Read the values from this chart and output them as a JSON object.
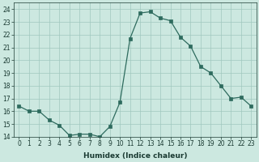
{
  "x": [
    0,
    1,
    2,
    3,
    4,
    5,
    6,
    7,
    8,
    9,
    10,
    11,
    12,
    13,
    14,
    15,
    16,
    17,
    18,
    19,
    20,
    21,
    22,
    23
  ],
  "y": [
    16.4,
    16.0,
    16.0,
    15.3,
    14.9,
    14.1,
    14.2,
    14.2,
    14.0,
    14.8,
    16.7,
    21.7,
    23.7,
    23.8,
    23.3,
    23.1,
    21.8,
    21.1,
    19.5,
    19.0,
    18.0,
    17.0,
    17.1,
    16.4
  ],
  "xlabel": "Humidex (Indice chaleur)",
  "xlim": [
    -0.5,
    23.5
  ],
  "ylim": [
    14,
    24.5
  ],
  "yticks": [
    14,
    15,
    16,
    17,
    18,
    19,
    20,
    21,
    22,
    23,
    24
  ],
  "xticks": [
    0,
    1,
    2,
    3,
    4,
    5,
    6,
    7,
    8,
    9,
    10,
    11,
    12,
    13,
    14,
    15,
    16,
    17,
    18,
    19,
    20,
    21,
    22,
    23
  ],
  "line_color": "#2e6b5e",
  "marker_color": "#2e6b5e",
  "bg_color": "#cce8e0",
  "grid_color": "#a0c8be",
  "fig_bg": "#cce8e0",
  "tick_fontsize": 5.5,
  "xlabel_fontsize": 6.5
}
